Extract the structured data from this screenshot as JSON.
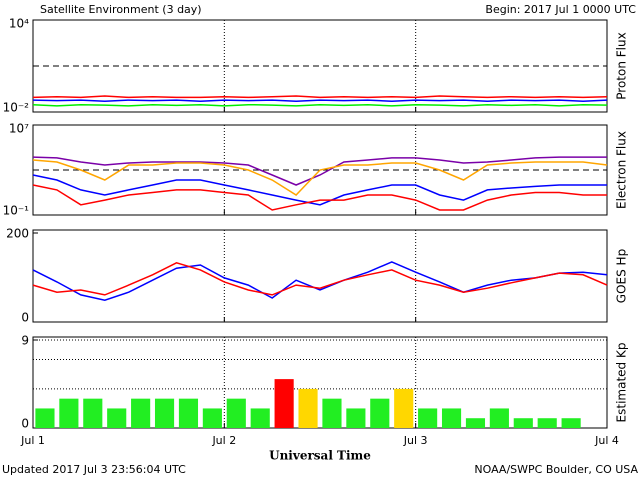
{
  "title": "Satellite Environment (3 day)",
  "begin": "Begin:  2017 Jul 1 0000 UTC",
  "updated": "Updated 2017 Jul  3 23:56:04 UTC",
  "credit": "NOAA/SWPC Boulder, CO USA",
  "x_label": "Universal Time",
  "xlim": [
    0,
    3
  ],
  "xticks": [
    {
      "value": 0,
      "label": "Jul 1"
    },
    {
      "value": 1,
      "label": "Jul 2"
    },
    {
      "value": 2,
      "label": "Jul 3"
    },
    {
      "value": 3,
      "label": "Jul 4"
    }
  ],
  "grid": true,
  "chart_data": [
    {
      "type": "line",
      "y_label": "Proton Flux",
      "log_y": true,
      "ylim": [
        0.01,
        10000
      ],
      "yticks": [
        {
          "value": 10000,
          "label": "10⁴"
        },
        {
          "value": 0.01,
          "label": "10⁻²"
        }
      ],
      "threshold": 10,
      "x": [
        0,
        0.125,
        0.25,
        0.375,
        0.5,
        0.625,
        0.75,
        0.875,
        1,
        1.125,
        1.25,
        1.375,
        1.5,
        1.625,
        1.75,
        1.875,
        2,
        2.125,
        2.25,
        2.375,
        2.5,
        2.625,
        2.75,
        2.875,
        3
      ],
      "series": [
        {
          "color": "#00ee00",
          "values": [
            0.03,
            0.025,
            0.03,
            0.028,
            0.025,
            0.03,
            0.027,
            0.03,
            0.025,
            0.03,
            0.028,
            0.025,
            0.03,
            0.027,
            0.03,
            0.025,
            0.03,
            0.028,
            0.025,
            0.03,
            0.027,
            0.03,
            0.025,
            0.03,
            0.028
          ]
        },
        {
          "color": "#0000ff",
          "values": [
            0.06,
            0.055,
            0.06,
            0.05,
            0.06,
            0.055,
            0.06,
            0.05,
            0.06,
            0.055,
            0.06,
            0.05,
            0.06,
            0.055,
            0.06,
            0.05,
            0.06,
            0.055,
            0.06,
            0.05,
            0.06,
            0.055,
            0.06,
            0.05,
            0.06
          ]
        },
        {
          "color": "#ff0000",
          "values": [
            0.09,
            0.1,
            0.09,
            0.11,
            0.09,
            0.1,
            0.09,
            0.09,
            0.1,
            0.09,
            0.1,
            0.11,
            0.09,
            0.1,
            0.09,
            0.1,
            0.09,
            0.11,
            0.1,
            0.09,
            0.1,
            0.09,
            0.1,
            0.09,
            0.1
          ]
        }
      ]
    },
    {
      "type": "line",
      "y_label": "Electron Flux",
      "log_y": true,
      "ylim": [
        0.1,
        10000000
      ],
      "yticks": [
        {
          "value": 10000000,
          "label": "10⁷"
        },
        {
          "value": 0.1,
          "label": "10⁻¹"
        }
      ],
      "threshold": 1000,
      "x": [
        0,
        0.125,
        0.25,
        0.375,
        0.5,
        0.625,
        0.75,
        0.875,
        1,
        1.125,
        1.25,
        1.375,
        1.5,
        1.625,
        1.75,
        1.875,
        2,
        2.125,
        2.25,
        2.375,
        2.5,
        2.625,
        2.75,
        2.875,
        3
      ],
      "series": [
        {
          "color": "#7a00a8",
          "values": [
            14000,
            12000,
            5100,
            2800,
            4200,
            5100,
            5100,
            5100,
            4200,
            2800,
            360,
            46,
            360,
            5100,
            7700,
            12000,
            12000,
            7700,
            4200,
            5100,
            7700,
            12000,
            14000,
            14000,
            14000
          ]
        },
        {
          "color": "#ffa500",
          "values": [
            7700,
            5100,
            1000,
            130,
            2800,
            2800,
            4200,
            4200,
            2800,
            1000,
            130,
            6,
            1000,
            2800,
            2800,
            4200,
            4200,
            1000,
            130,
            2800,
            4200,
            5100,
            5100,
            5100,
            2800
          ]
        },
        {
          "color": "#0000ff",
          "values": [
            360,
            130,
            17,
            6,
            17,
            46,
            130,
            130,
            46,
            17,
            6,
            2.1,
            0.8,
            6,
            17,
            46,
            46,
            6,
            2.1,
            17,
            25,
            35,
            46,
            46,
            46
          ]
        },
        {
          "color": "#ff0000",
          "values": [
            46,
            17,
            0.8,
            2.1,
            6,
            10,
            17,
            17,
            10,
            6,
            0.28,
            0.8,
            2.1,
            2.1,
            6,
            6,
            2.1,
            0.28,
            0.28,
            2.1,
            6,
            10,
            10,
            6,
            6
          ]
        }
      ]
    },
    {
      "type": "line",
      "y_label": "GOES Hp",
      "log_y": false,
      "ylim": [
        0,
        200
      ],
      "yticks": [
        200,
        0
      ],
      "x": [
        0,
        0.125,
        0.25,
        0.375,
        0.5,
        0.625,
        0.75,
        0.875,
        1,
        1.125,
        1.25,
        1.375,
        1.5,
        1.625,
        1.75,
        1.875,
        2,
        2.125,
        2.25,
        2.375,
        2.5,
        2.625,
        2.75,
        2.875,
        3
      ],
      "series": [
        {
          "color": "#0000ff",
          "values": [
            117,
            90,
            61,
            49,
            67,
            94,
            121,
            128,
            99,
            83,
            54,
            94,
            72,
            94,
            112,
            135,
            112,
            90,
            67,
            83,
            94,
            99,
            110,
            112,
            106
          ]
        },
        {
          "color": "#ff0000",
          "values": [
            83,
            67,
            72,
            61,
            83,
            106,
            133,
            117,
            90,
            72,
            61,
            83,
            76,
            94,
            106,
            117,
            94,
            83,
            67,
            76,
            88,
            99,
            110,
            106,
            83
          ]
        }
      ]
    },
    {
      "type": "bar",
      "y_label": "Estimated Kp",
      "log_y": false,
      "ylim": [
        0,
        9
      ],
      "yticks": [
        9,
        0
      ],
      "dotted_levels": [
        9,
        7,
        4
      ],
      "bar_width": 0.1,
      "x": [
        0.0625,
        0.1875,
        0.3125,
        0.4375,
        0.5625,
        0.6875,
        0.8125,
        0.9375,
        1.0625,
        1.1875,
        1.3125,
        1.4375,
        1.5625,
        1.6875,
        1.8125,
        1.9375,
        2.0625,
        2.1875,
        2.3125,
        2.4375,
        2.5625,
        2.6875,
        2.8125,
        2.9375
      ],
      "values": [
        2,
        3,
        3,
        2,
        3,
        3,
        3,
        2,
        3,
        2,
        5,
        4,
        3,
        2,
        3,
        4,
        2,
        2,
        1,
        2,
        1,
        1,
        1,
        null
      ],
      "colors": [
        "#22ee22",
        "#22ee22",
        "#22ee22",
        "#22ee22",
        "#22ee22",
        "#22ee22",
        "#22ee22",
        "#22ee22",
        "#22ee22",
        "#22ee22",
        "#ff0000",
        "#ffd700",
        "#22ee22",
        "#22ee22",
        "#22ee22",
        "#ffd700",
        "#22ee22",
        "#22ee22",
        "#22ee22",
        "#22ee22",
        "#22ee22",
        "#22ee22",
        "#22ee22",
        null
      ]
    }
  ]
}
